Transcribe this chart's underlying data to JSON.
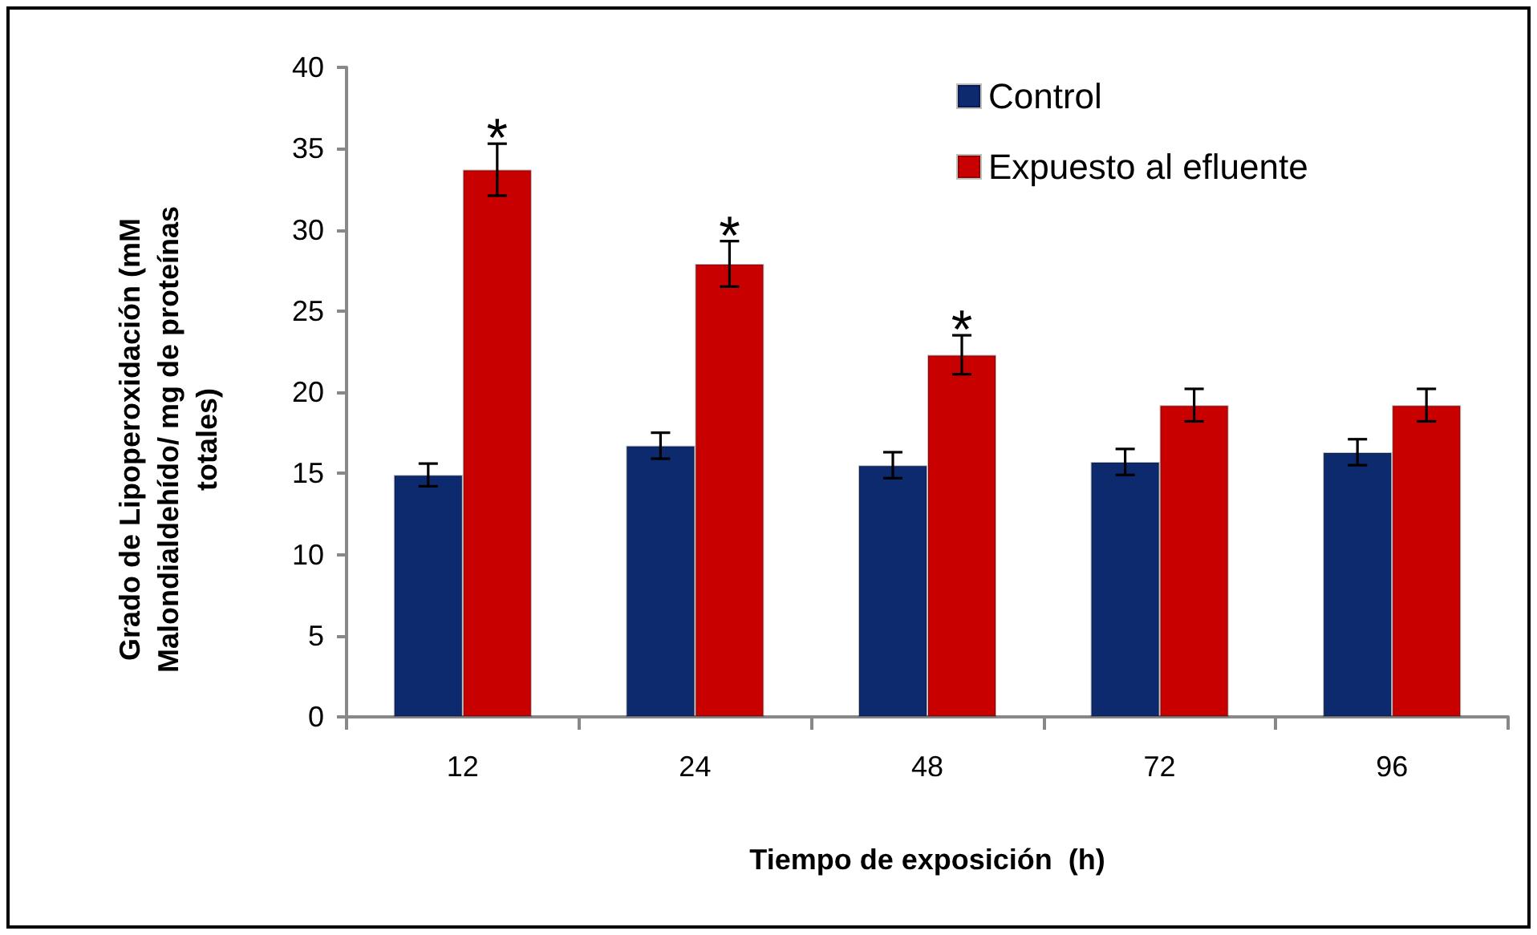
{
  "chart_data": {
    "type": "bar",
    "xlabel": "Tiempo de exposición  (h)",
    "ylabel": "Grado de Lipoperoxidación (mM Malondialdehído/  mg de proteínas totales)",
    "categories": [
      "12",
      "24",
      "48",
      "72",
      "96"
    ],
    "series": [
      {
        "name": "Control",
        "color": "#0d2a6e",
        "values": [
          14.9,
          16.7,
          15.5,
          15.7,
          16.3
        ],
        "errors": [
          0.7,
          0.8,
          0.8,
          0.8,
          0.8
        ]
      },
      {
        "name": "Expuesto al efluente",
        "color": "#c90000",
        "values": [
          33.7,
          27.9,
          22.3,
          19.2,
          19.2
        ],
        "errors": [
          1.6,
          1.4,
          1.2,
          1.0,
          1.0
        ]
      }
    ],
    "annotations": [
      "*",
      "*",
      "*"
    ],
    "ylim": [
      0,
      40
    ],
    "yticks": [
      0,
      5,
      10,
      15,
      20,
      25,
      30,
      35,
      40
    ],
    "grid": false,
    "legend": "top right"
  }
}
